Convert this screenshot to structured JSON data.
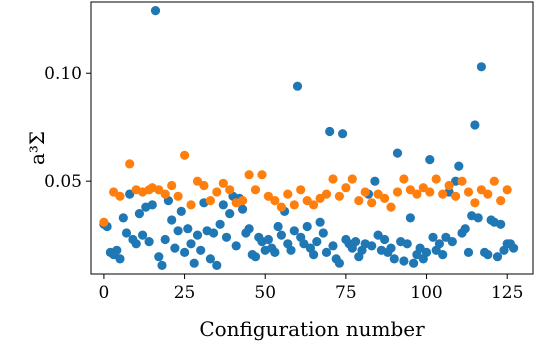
{
  "chart_data": {
    "type": "scatter",
    "xlabel": "Configuration number",
    "ylabel": "a³Σ",
    "xlim": [
      -4,
      133
    ],
    "ylim": [
      0.007,
      0.133
    ],
    "xticks": [
      0,
      25,
      50,
      75,
      100,
      125
    ],
    "yticks": [
      0.05,
      0.1
    ],
    "ytick_labels": [
      "0.05",
      "0.10"
    ],
    "grid": false,
    "series": [
      {
        "color": "#1f77b4",
        "x": [
          0,
          1,
          2,
          3,
          4,
          5,
          6,
          7,
          8,
          9,
          10,
          11,
          12,
          13,
          14,
          15,
          16,
          17,
          18,
          19,
          20,
          21,
          22,
          23,
          24,
          25,
          26,
          27,
          28,
          29,
          30,
          31,
          32,
          33,
          34,
          35,
          36,
          37,
          38,
          39,
          40,
          41,
          42,
          43,
          44,
          45,
          46,
          47,
          48,
          49,
          50,
          51,
          52,
          53,
          54,
          55,
          56,
          57,
          58,
          59,
          60,
          61,
          62,
          63,
          64,
          65,
          66,
          67,
          68,
          69,
          70,
          71,
          72,
          73,
          74,
          75,
          76,
          77,
          78,
          79,
          80,
          81,
          82,
          83,
          84,
          85,
          86,
          87,
          88,
          89,
          90,
          91,
          92,
          93,
          94,
          95,
          96,
          97,
          98,
          99,
          100,
          101,
          102,
          103,
          104,
          105,
          106,
          107,
          108,
          109,
          110,
          111,
          112,
          113,
          114,
          115,
          116,
          117,
          118,
          119,
          120,
          121,
          122,
          123,
          124,
          125,
          126,
          127
        ],
        "y": [
          0.03,
          0.029,
          0.017,
          0.016,
          0.018,
          0.014,
          0.033,
          0.026,
          0.044,
          0.023,
          0.021,
          0.035,
          0.025,
          0.038,
          0.022,
          0.039,
          0.129,
          0.015,
          0.011,
          0.023,
          0.041,
          0.032,
          0.019,
          0.027,
          0.036,
          0.017,
          0.028,
          0.021,
          0.012,
          0.025,
          0.018,
          0.04,
          0.027,
          0.014,
          0.026,
          0.011,
          0.03,
          0.039,
          0.024,
          0.035,
          0.043,
          0.02,
          0.042,
          0.037,
          0.026,
          0.028,
          0.016,
          0.015,
          0.024,
          0.022,
          0.018,
          0.023,
          0.019,
          0.017,
          0.029,
          0.025,
          0.036,
          0.021,
          0.018,
          0.027,
          0.094,
          0.024,
          0.021,
          0.029,
          0.019,
          0.016,
          0.022,
          0.031,
          0.026,
          0.017,
          0.073,
          0.02,
          0.014,
          0.012,
          0.072,
          0.023,
          0.021,
          0.019,
          0.022,
          0.015,
          0.018,
          0.021,
          0.044,
          0.02,
          0.05,
          0.025,
          0.018,
          0.023,
          0.017,
          0.019,
          0.014,
          0.063,
          0.022,
          0.013,
          0.021,
          0.033,
          0.012,
          0.016,
          0.019,
          0.014,
          0.017,
          0.06,
          0.024,
          0.018,
          0.021,
          0.016,
          0.024,
          0.045,
          0.022,
          0.05,
          0.057,
          0.026,
          0.028,
          0.017,
          0.034,
          0.076,
          0.033,
          0.103,
          0.017,
          0.016,
          0.032,
          0.031,
          0.015,
          0.03,
          0.018,
          0.021,
          0.021,
          0.019
        ]
      },
      {
        "color": "#ff7f0e",
        "x": [
          0,
          3,
          5,
          8,
          10,
          12,
          14,
          15,
          17,
          19,
          21,
          23,
          25,
          27,
          29,
          31,
          33,
          35,
          37,
          39,
          41,
          43,
          45,
          47,
          49,
          51,
          53,
          55,
          57,
          59,
          61,
          63,
          65,
          67,
          69,
          71,
          73,
          75,
          77,
          79,
          81,
          83,
          85,
          87,
          89,
          91,
          93,
          95,
          97,
          99,
          101,
          103,
          105,
          107,
          109,
          111,
          113,
          115,
          117,
          119,
          121,
          123,
          125
        ],
        "y": [
          0.031,
          0.045,
          0.043,
          0.058,
          0.046,
          0.045,
          0.046,
          0.047,
          0.046,
          0.044,
          0.048,
          0.043,
          0.062,
          0.039,
          0.05,
          0.048,
          0.041,
          0.045,
          0.049,
          0.046,
          0.04,
          0.041,
          0.053,
          0.046,
          0.053,
          0.043,
          0.041,
          0.038,
          0.044,
          0.039,
          0.046,
          0.041,
          0.039,
          0.042,
          0.044,
          0.051,
          0.043,
          0.047,
          0.051,
          0.041,
          0.045,
          0.04,
          0.044,
          0.042,
          0.038,
          0.045,
          0.051,
          0.046,
          0.044,
          0.047,
          0.045,
          0.051,
          0.044,
          0.048,
          0.043,
          0.05,
          0.045,
          0.04,
          0.046,
          0.044,
          0.05,
          0.041,
          0.046
        ]
      }
    ]
  }
}
